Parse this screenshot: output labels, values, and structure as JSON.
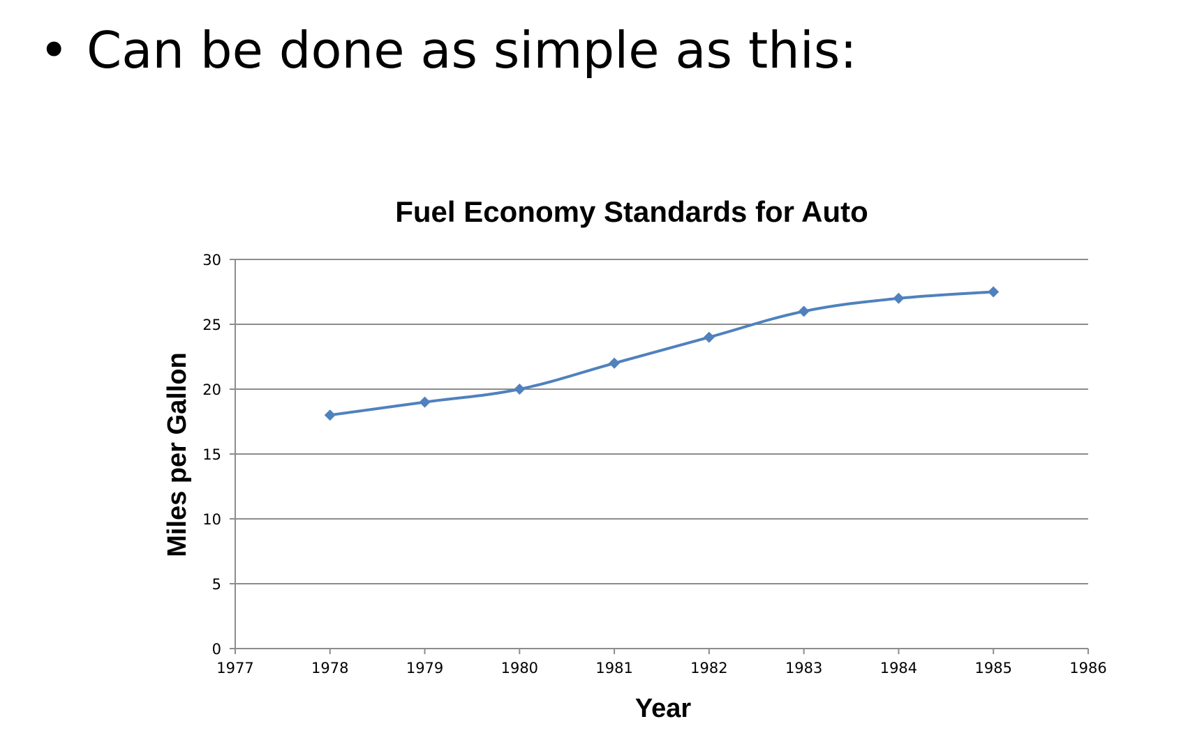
{
  "slide": {
    "bullet_symbol": "•",
    "bullet_text": "Can be done as simple as this:"
  },
  "colors": {
    "line": "#4f81bd",
    "grid": "#8c8c8c",
    "axis": "#8c8c8c",
    "text": "#000000"
  },
  "chart_data": {
    "type": "line",
    "title": "Fuel Economy Standards for Auto",
    "xlabel": "Year",
    "ylabel": "Miles per Gallon",
    "x_ticks": [
      1977,
      1978,
      1979,
      1980,
      1981,
      1982,
      1983,
      1984,
      1985,
      1986
    ],
    "y_ticks": [
      0,
      5,
      10,
      15,
      20,
      25,
      30
    ],
    "xlim": [
      1977,
      1986
    ],
    "ylim": [
      0,
      30
    ],
    "grid": "horizontal",
    "marker": "diamond",
    "smooth": true,
    "series": [
      {
        "x": [
          1978,
          1979,
          1980,
          1981,
          1982,
          1983,
          1984,
          1985
        ],
        "y": [
          18,
          19,
          20,
          22,
          24,
          26,
          27,
          27.5
        ]
      }
    ]
  }
}
